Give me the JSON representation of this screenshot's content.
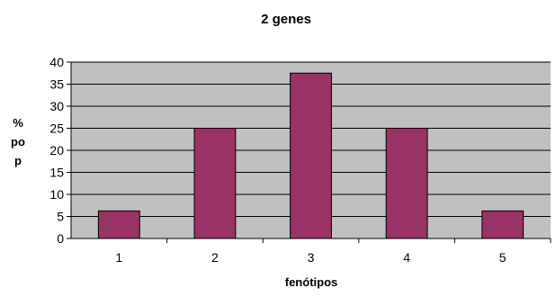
{
  "chart_data": {
    "type": "bar",
    "title": "2 genes",
    "xlabel": "fenótipos",
    "ylabel_lines": [
      "%",
      "po",
      "p"
    ],
    "categories": [
      "1",
      "2",
      "3",
      "4",
      "5"
    ],
    "values": [
      6.25,
      25,
      37.5,
      25,
      6.25
    ],
    "ylim": [
      0,
      40
    ],
    "yticks": [
      0,
      5,
      10,
      15,
      20,
      25,
      30,
      35,
      40
    ],
    "grid": true,
    "colors": {
      "bar_fill": "#993366",
      "bar_stroke": "#000000",
      "plot_background": "#c0c0c0",
      "gridline": "#000000"
    }
  }
}
